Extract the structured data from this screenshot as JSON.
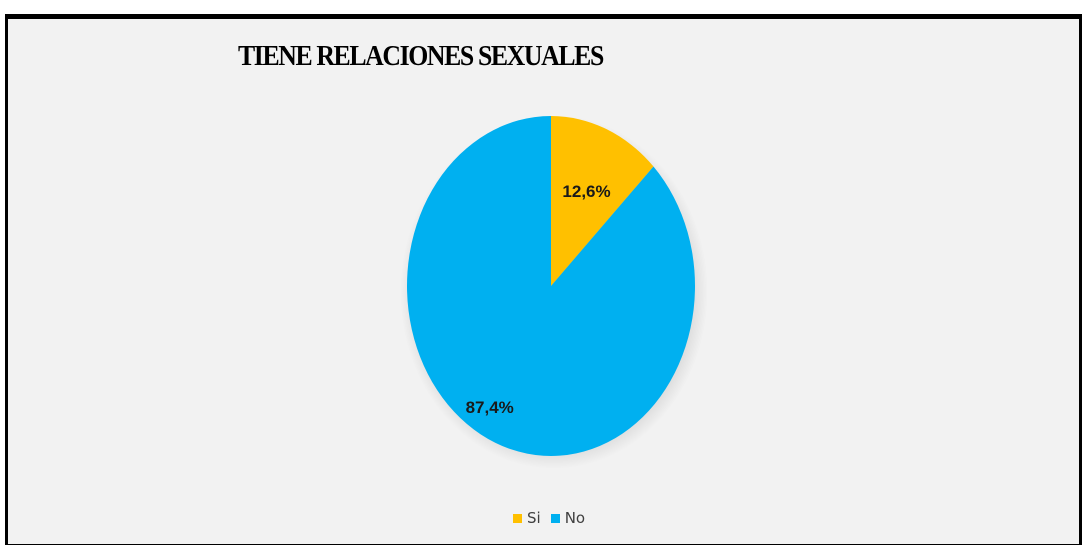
{
  "chart_data": {
    "type": "pie",
    "title": "TIENE RELACIONES SEXUALES",
    "slices": [
      {
        "label": "Si",
        "value": 12.6,
        "display": "12,6%",
        "color": "#ffc000"
      },
      {
        "label": "No",
        "value": 87.4,
        "display": "87,4%",
        "color": "#00b0f0"
      }
    ],
    "legend_position": "bottom",
    "start_angle": "12 o'clock, clockwise"
  }
}
